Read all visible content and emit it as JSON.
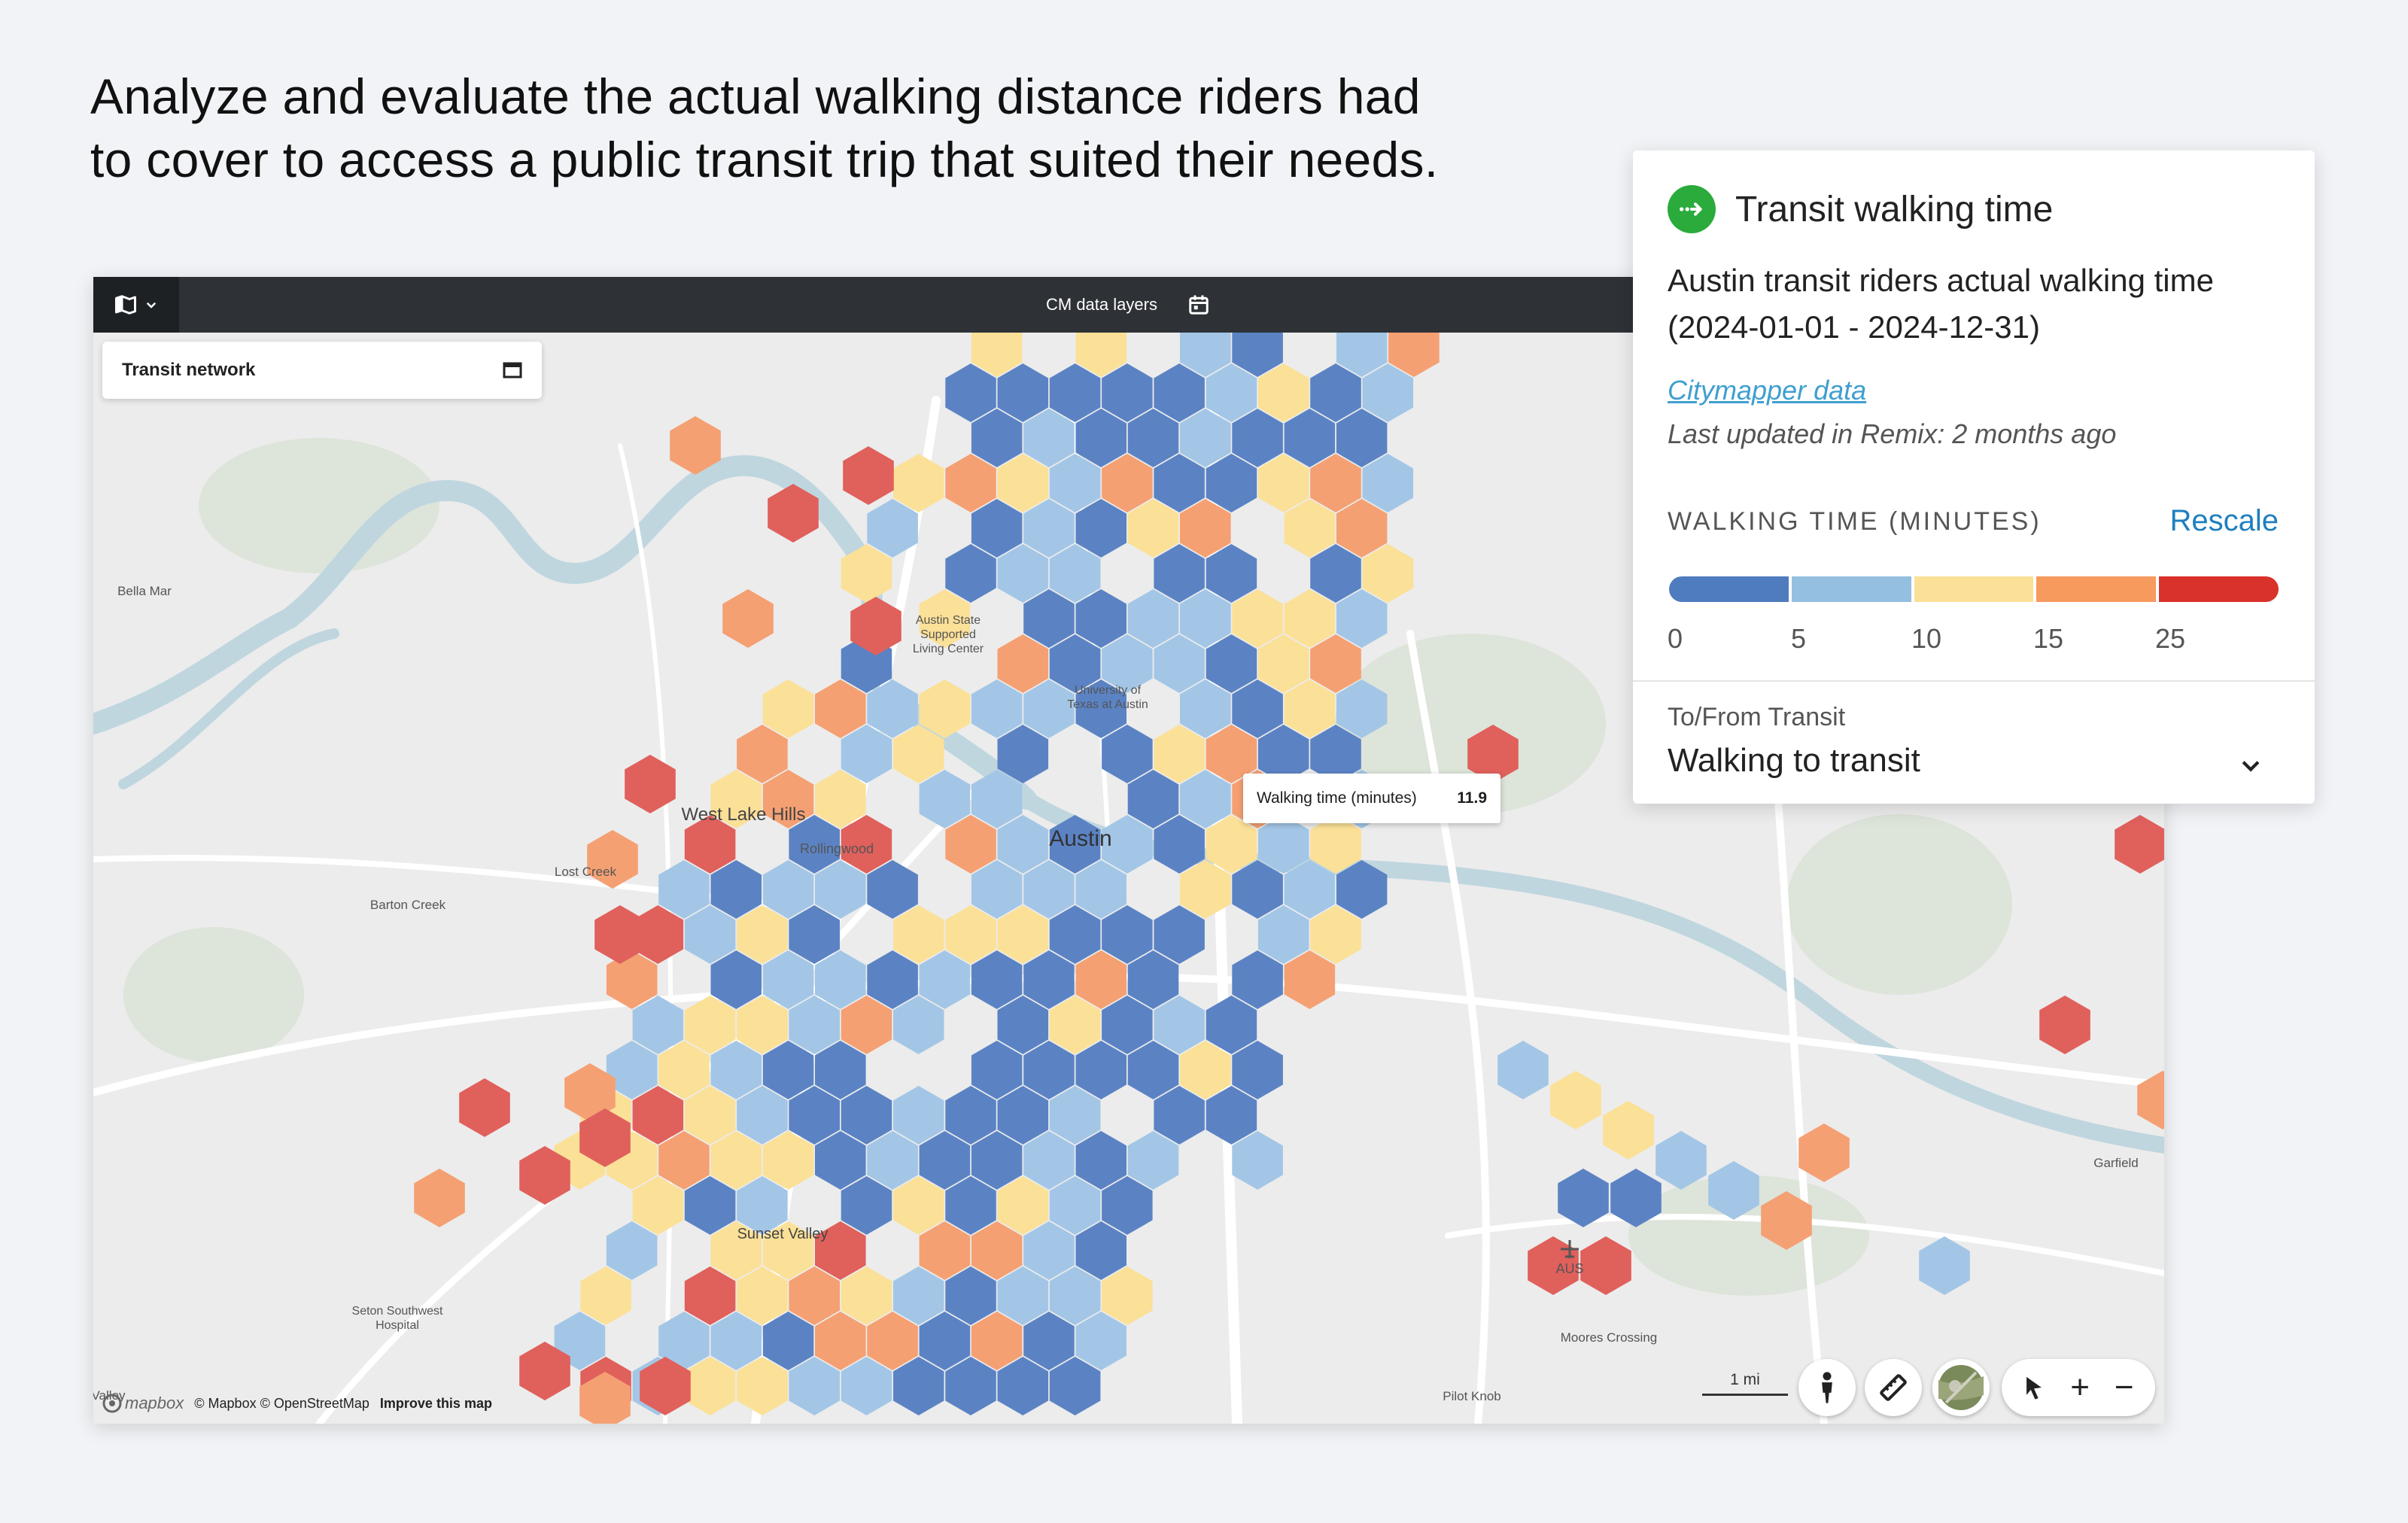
{
  "headline": {
    "line1": "Analyze and evaluate the actual walking distance riders had",
    "line2": "to cover to access a public transit trip that suited their needs."
  },
  "topbar": {
    "layers_label": "CM data layers"
  },
  "map": {
    "network_card_label": "Transit network",
    "tooltip_label": "Walking time (minutes)",
    "tooltip_value": "11.9",
    "place_labels": {
      "bella_mar": "Bella Mar",
      "living_center_1": "Austin State",
      "living_center_2": "Supported",
      "living_center_3": "Living Center",
      "ut_1": "University of",
      "ut_2": "Texas at Austin",
      "west_lake_hills": "West Lake Hills",
      "rollingwood": "Rollingwood",
      "austin": "Austin",
      "lost_creek": "Lost Creek",
      "barton_creek": "Barton Creek",
      "sunset_valley": "Sunset Valley",
      "seton_1": "Seton Southwest",
      "seton_2": "Hospital",
      "valley": "Valley",
      "garfield": "Garfield",
      "aus": "AUS",
      "moores_crossing": "Moores Crossing",
      "pilot_knob": "Pilot Knob"
    },
    "attribution_logo": "mapbox",
    "attribution_text": "© Mapbox © OpenStreetMap",
    "attribution_improve": "Improve this map",
    "scale_label": "1 mi"
  },
  "colors": {
    "c1": "#5b83c4",
    "c2": "#a3c6e6",
    "c3": "#fbe097",
    "c4": "#f5a073",
    "c5": "#e0605c"
  },
  "panel": {
    "title": "Transit walking time",
    "desc_line1": "Austin transit riders actual walking time",
    "desc_line2": "(2024-01-01 - 2024-12-31)",
    "source_link": "Citymapper data",
    "updated": "Last updated in Remix: 2 months ago",
    "legend_title": "WALKING TIME (MINUTES)",
    "rescale": "Rescale",
    "legend_ticks": [
      "0",
      "5",
      "10",
      "15",
      "25"
    ],
    "legend_colors": [
      "#4f7bbf",
      "#94bfe0",
      "#fbe097",
      "#f79a5e",
      "#d9322a"
    ],
    "direction_label": "To/From Transit",
    "direction_value": "Walking to transit"
  }
}
